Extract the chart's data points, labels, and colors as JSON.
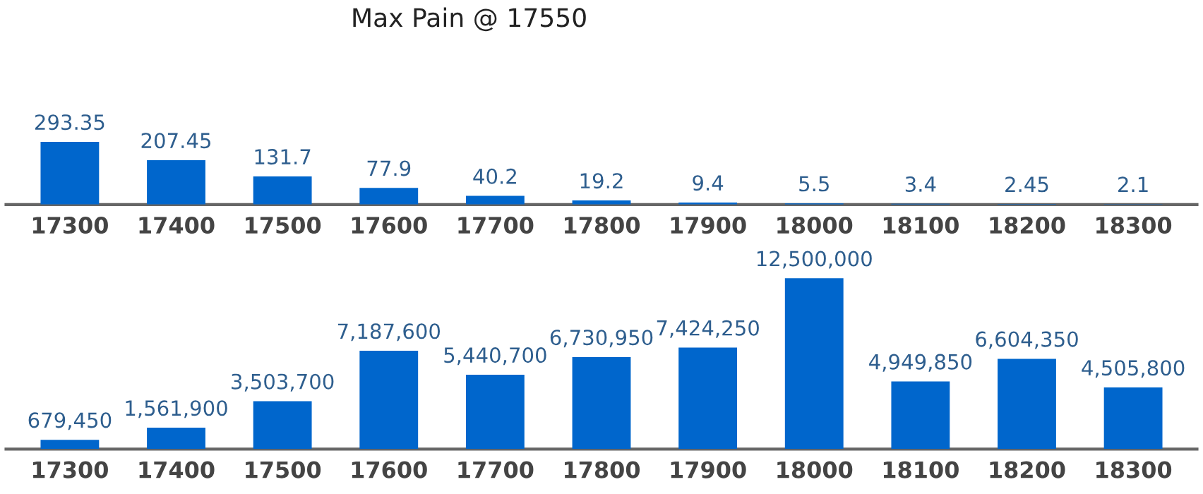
{
  "chart_data": [
    {
      "type": "bar",
      "title": "Max Pain @ 17550",
      "categories": [
        "17300",
        "17400",
        "17500",
        "17600",
        "17700",
        "17800",
        "17900",
        "18000",
        "18100",
        "18200",
        "18300"
      ],
      "series": [
        {
          "color": "#0066cc",
          "values": [
            293.35,
            207.45,
            131.7,
            77.9,
            40.2,
            19.2,
            9.4,
            5.5,
            3.4,
            2.45,
            2.1
          ]
        }
      ],
      "data_labels": true,
      "tick_labels": "x"
    },
    {
      "type": "bar",
      "categories": [
        "17300",
        "17400",
        "17500",
        "17600",
        "17700",
        "17800",
        "17900",
        "18000",
        "18100",
        "18200",
        "18300"
      ],
      "series": [
        {
          "color": "#0066cc",
          "values": [
            679450,
            1561900,
            3503700,
            7187600,
            5440700,
            6730950,
            7424250,
            12500000,
            4949850,
            6604350,
            4505800
          ],
          "value_labels": [
            "679,450",
            "1,561,900",
            "3,503,700",
            "7,187,600",
            "5,440,700",
            "6,730,950",
            "7,424,250",
            "12,500,000",
            "4,949,850",
            "6,604,350",
            "4,505,800"
          ]
        }
      ],
      "tick_labels": "x"
    }
  ]
}
